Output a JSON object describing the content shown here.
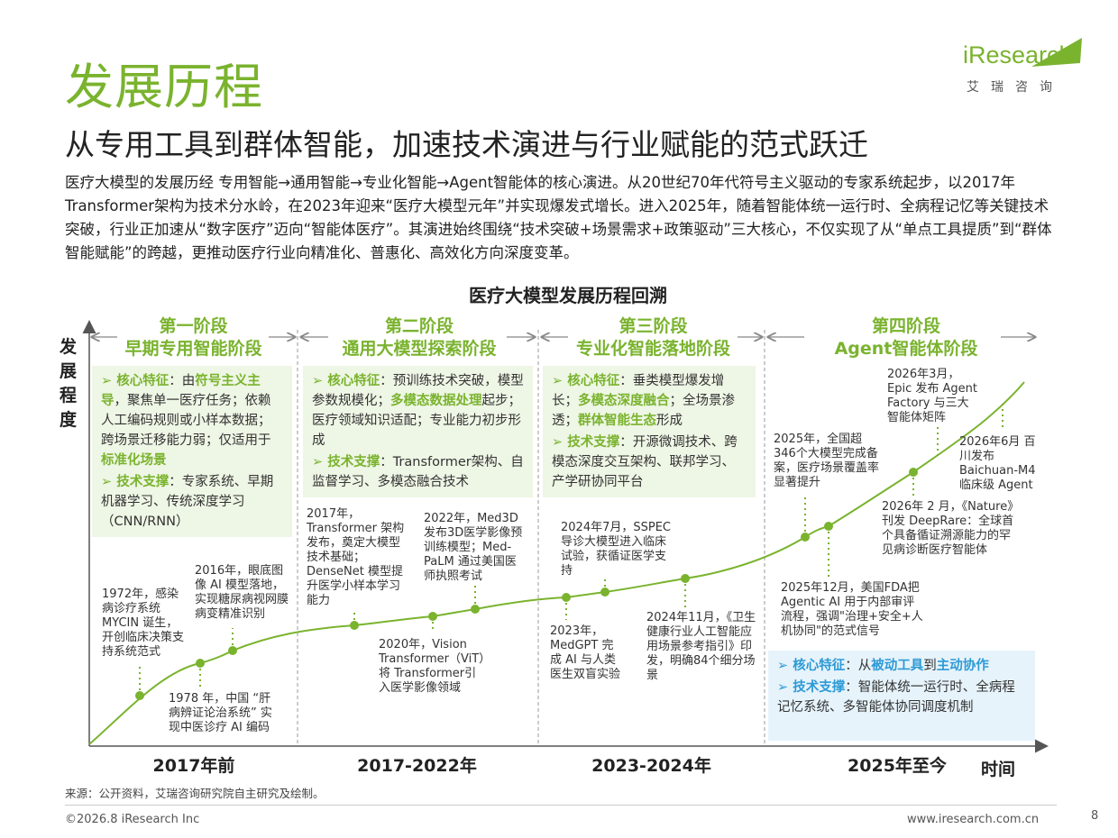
{
  "title": "发展历程",
  "subtitle": "从专用工具到群体智能，加速技术演进与行业赋能的范式跃迁",
  "logo": {
    "word": "iResearch",
    "sub": "艾瑞咨询"
  },
  "intro": "医疗大模型的发展历经 专用智能→通用智能→专业化智能→Agent智能体的核心演进。从20世纪70年代符号主义驱动的专家系统起步，以2017年Transformer架构为技术分水岭，在2023年迎来“医疗大模型元年”并实现爆发式增长。进入2025年，随着智能体统一运行时、全病程记忆等关键技术突破，行业正加速从“数字医疗”迈向“智能体医疗”。其演进始终围绕“技术突破+场景需求+政策驱动”三大核心，不仅实现了从“单点工具提质”到“群体智能赋能”的跨越，更推动医疗行业向精准化、普惠化、高效化方向深度变革。",
  "chart_title": "医疗大模型发展历程回溯",
  "axis": {
    "y": "发展程度",
    "x": "时间"
  },
  "stages": [
    {
      "name": "第一阶段",
      "label": "早期专用智能阶段",
      "era": "2017年前"
    },
    {
      "name": "第二阶段",
      "label": "通用大模型探索阶段",
      "era": "2017-2022年"
    },
    {
      "name": "第三阶段",
      "label": "专业化智能落地阶段",
      "era": "2023-2024年"
    },
    {
      "name": "第四阶段",
      "label": "Agent智能体阶段",
      "era": "2025年至今"
    }
  ],
  "cards": {
    "s1": {
      "f_key": "核心特征",
      "f_pre": "：由",
      "f_hl1": "符号主义主导",
      "f_mid": "，聚焦单一医疗任务；依赖人工编码规则或小样本数据；跨场景迁移能力弱；仅适用于",
      "f_hl2": "标准化场景",
      "t_key": "技术支撑",
      "t_text": "：专家系统、早期机器学习、传统深度学习（CNN/RNN）"
    },
    "s2": {
      "f_key": "核心特征",
      "f_pre": "：预训练技术突破，模型参数规模化；",
      "f_hl1": "多模态数据处理",
      "f_mid": "起步；医疗领域知识适配；专业能力初步形成",
      "t_key": "技术支撑",
      "t_text": "：Transformer架构、自监督学习、多模态融合技术"
    },
    "s3": {
      "f_key": "核心特征",
      "f_pre": "：垂类模型爆发增长；",
      "f_hl1": "多模态深度融合",
      "f_mid": "；全场景渗透；",
      "f_hl2": "群体智能生态",
      "f_post": "形成",
      "t_key": "技术支撑",
      "t_text": "：开源微调技术、跨模态深度交互架构、联邦学习、产学研协同平台"
    },
    "s4": {
      "f_key": "核心特征",
      "f_pre": "：从",
      "f_hl1": "被动工具",
      "f_mid": "到",
      "f_hl2": "主动协作",
      "t_key": "技术支撑",
      "t_text": "：智能体统一运行时、全病程记忆系统、多智能体协同调度机制"
    }
  },
  "events": [
    "1972年，感染病诊疗系统MYCIN 诞生，开创临床决策支持系统范式",
    "1978 年，中国 “肝病辨证论治系统” 实现中医诊疗 AI 编码",
    "2016年，眼底图像 AI 模型落地，实现糖尿病视网膜病变精准识别",
    "2017年，Transformer 架构发布，奠定大模型技术基础；DenseNet 模型提升医学小样本学习能力",
    "2020年，Vision Transformer（ViT）将 Transformer引入医学影像领域",
    "2022年，Med3D 发布3D医学影像预训练模型；Med-PaLM 通过美国医师执照考试",
    "2023年，MedGPT 完成 AI 与人类医生双盲实验",
    "2024年7月，SSPEC 导诊大模型进入临床试验，获循证医学支持",
    "2024年11月，《卫生健康行业人工智能应用场景参考指引》印发，明确84个细分场景",
    "2025年，全国超346个大模型完成备案，医疗场景覆盖率显著提升",
    "2025年12月，美国FDA把 Agentic AI 用于内部审评流程，强调\"治理+安全+人机协同\"的范式信号",
    "2026年 2 月，《Nature》刊发 DeepRare：全球首个具备循证溯源能力的罕见病诊断医疗智能体",
    "2026年3月，Epic 发布 Agent Factory 与三大智能体矩阵",
    "2026年6月 百川发布 Baichuan-M4 临床级 Agent"
  ],
  "source": "来源：公开资料，艾瑞咨询研究院自主研究及绘制。",
  "copyright": "©2026.8 iResearch Inc",
  "website": "www.iresearch.com.cn",
  "page_number": "8",
  "colors": {
    "accent_green": "#7ab32e",
    "accent_blue": "#2d9ad6",
    "card_green": "#eef6e5",
    "card_blue": "#e6f3fb"
  }
}
